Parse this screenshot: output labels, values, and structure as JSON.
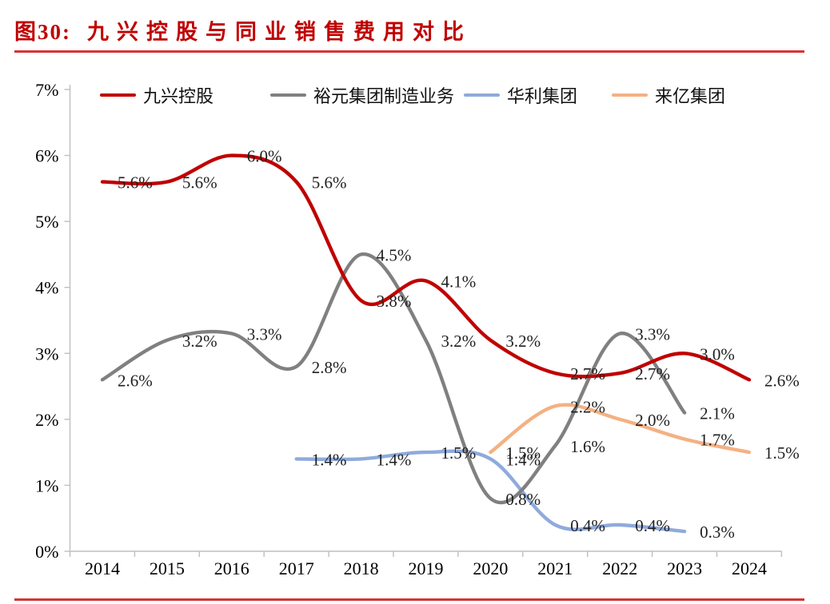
{
  "title": {
    "prefix": "图30:",
    "text": "九兴控股与同业销售费用对比"
  },
  "chart_data": {
    "type": "line",
    "title": "九兴控股与同业销售费用对比",
    "xlabel": "",
    "ylabel": "",
    "x_years": [
      "2014",
      "2015",
      "2016",
      "2017",
      "2018",
      "2019",
      "2020",
      "2021",
      "2022",
      "2023",
      "2024"
    ],
    "ylim": [
      0,
      7
    ],
    "ytick_labels": [
      "0%",
      "1%",
      "2%",
      "3%",
      "4%",
      "5%",
      "6%",
      "7%"
    ],
    "grid": false,
    "smooth_lines": true,
    "legend_position": "top",
    "axis_color": "#BFBFBF",
    "series": [
      {
        "name": "九兴控股",
        "color": "#C00000",
        "start_year": 2014,
        "values": [
          5.6,
          5.6,
          6.0,
          5.6,
          3.8,
          4.1,
          3.2,
          2.7,
          2.7,
          3.0,
          2.6
        ],
        "labels": [
          "5.6%",
          "5.6%",
          "6.0%",
          "5.6%",
          "3.8%",
          "4.1%",
          "3.2%",
          "2.7%",
          "2.7%",
          "3.0%",
          "2.6%"
        ]
      },
      {
        "name": "裕元集团制造业务",
        "color": "#808080",
        "start_year": 2014,
        "values": [
          2.6,
          3.2,
          3.3,
          2.8,
          4.5,
          3.2,
          0.8,
          1.6,
          3.3,
          2.1
        ],
        "labels": [
          "2.6%",
          "3.2%",
          "3.3%",
          "2.8%",
          "4.5%",
          "3.2%",
          "0.8%",
          "1.6%",
          "3.3%",
          "2.1%"
        ]
      },
      {
        "name": "华利集团",
        "color": "#8FAADC",
        "start_year": 2017,
        "values": [
          1.4,
          1.4,
          1.5,
          1.4,
          0.4,
          0.4,
          0.3
        ],
        "labels": [
          "1.4%",
          "1.4%",
          "1.5%",
          "1.4%",
          "0.4%",
          "0.4%",
          "0.3%"
        ]
      },
      {
        "name": "来亿集团",
        "color": "#F4B183",
        "start_year": 2020,
        "values": [
          1.5,
          2.2,
          2.0,
          1.7,
          1.5
        ],
        "labels": [
          "1.5%",
          "2.2%",
          "2.0%",
          "1.7%",
          "1.5%"
        ]
      }
    ]
  }
}
